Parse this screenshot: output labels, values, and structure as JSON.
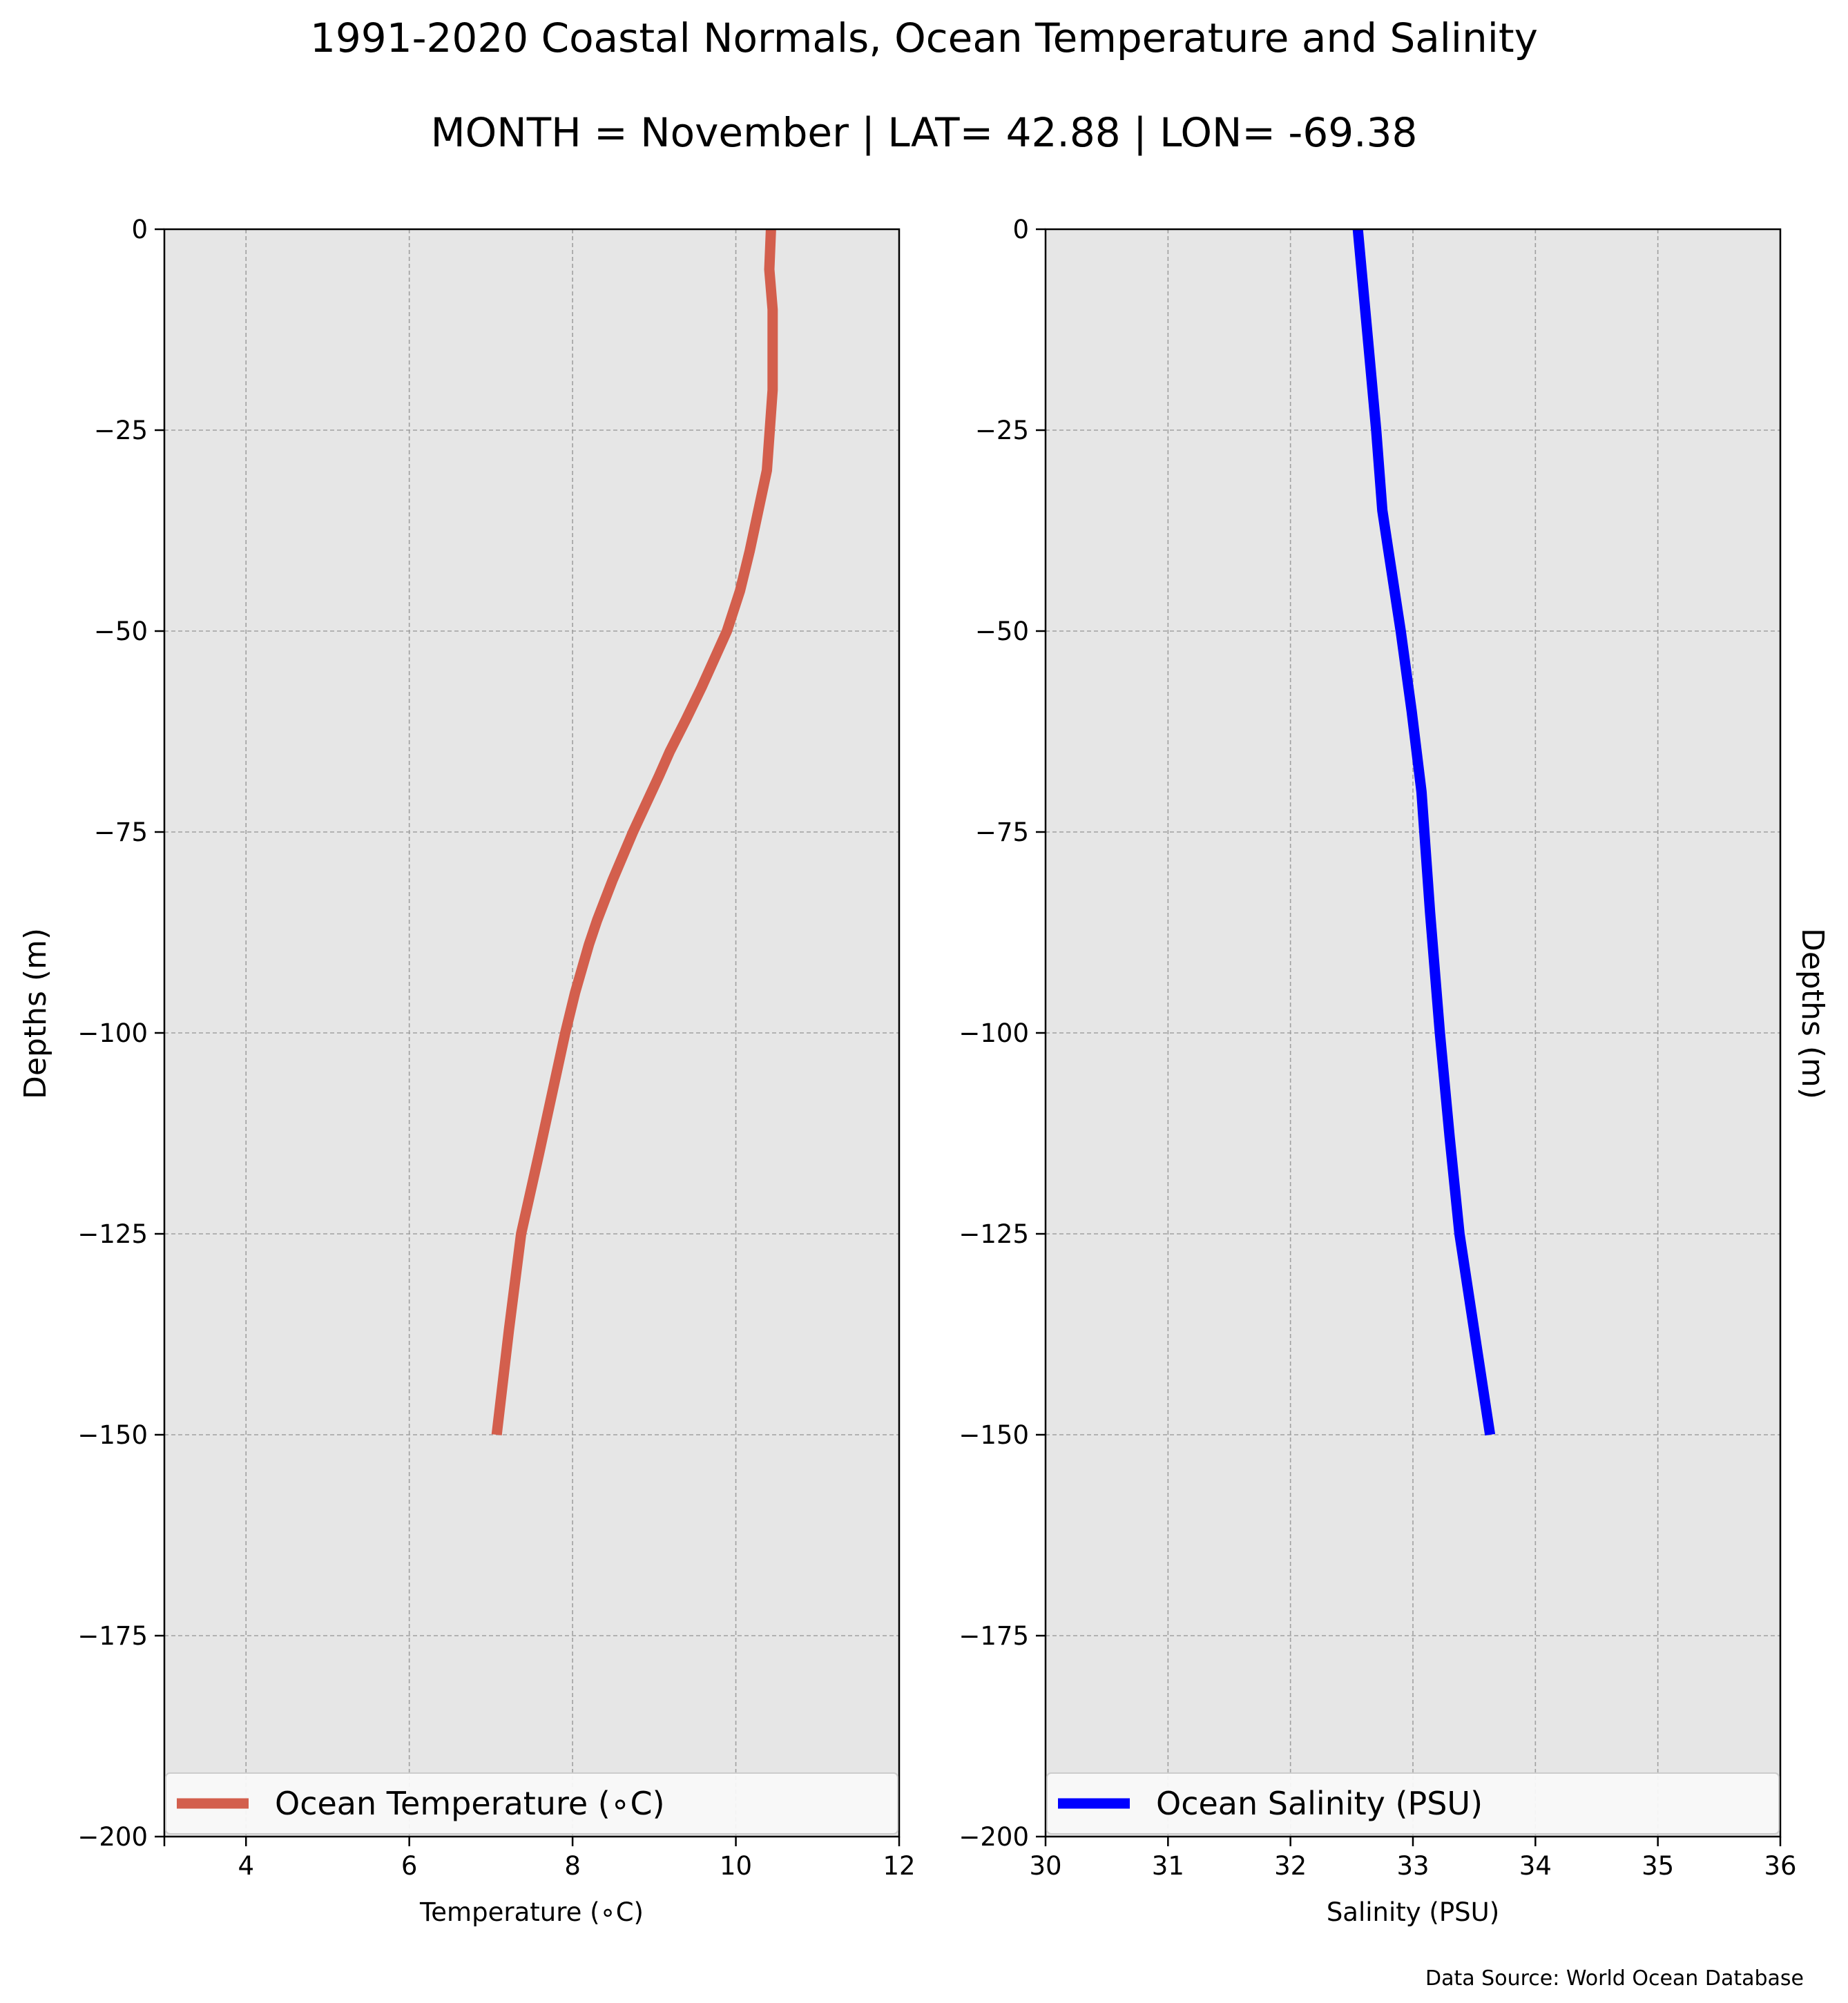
{
  "figure": {
    "title": "1991-2020 Coastal Normals, Ocean Temperature and Salinity",
    "subtitle": "MONTH = November | LAT= 42.88 | LON= -69.38",
    "source": "Data Source: World Ocean Database",
    "background": "#ffffff",
    "plot_background": "#e6e6e6"
  },
  "chart_data": [
    {
      "type": "line",
      "xlabel": "Temperature ($^\\circ$C)",
      "xlabel_display": "Temperature (∘C)",
      "ylabel": "Depths (m)",
      "xlim": [
        3,
        12
      ],
      "ylim": [
        -200,
        0
      ],
      "xticks": [
        4,
        6,
        8,
        10,
        12
      ],
      "xtick_labels": [
        "4",
        "6",
        "8",
        "10",
        "12"
      ],
      "yticks": [
        0,
        -25,
        -50,
        -75,
        -100,
        -125,
        -150,
        -175,
        -200
      ],
      "ytick_labels": [
        "0",
        "−25",
        "−50",
        "−75",
        "−100",
        "−125",
        "−150",
        "−175",
        "−200"
      ],
      "grid": true,
      "legend_location": "bottom",
      "series": [
        {
          "name": "Ocean Temperature (∘C)",
          "color": "#d35f4d",
          "points": [
            {
              "x": 10.43,
              "y": 0
            },
            {
              "x": 10.41,
              "y": -5
            },
            {
              "x": 10.45,
              "y": -10
            },
            {
              "x": 10.45,
              "y": -20
            },
            {
              "x": 10.38,
              "y": -30
            },
            {
              "x": 10.17,
              "y": -40
            },
            {
              "x": 10.05,
              "y": -45
            },
            {
              "x": 9.89,
              "y": -50
            },
            {
              "x": 9.58,
              "y": -57
            },
            {
              "x": 9.39,
              "y": -61
            },
            {
              "x": 9.19,
              "y": -65
            },
            {
              "x": 9.06,
              "y": -68
            },
            {
              "x": 8.74,
              "y": -75
            },
            {
              "x": 8.49,
              "y": -81
            },
            {
              "x": 8.3,
              "y": -86
            },
            {
              "x": 8.2,
              "y": -89
            },
            {
              "x": 8.03,
              "y": -95
            },
            {
              "x": 7.91,
              "y": -100
            },
            {
              "x": 7.59,
              "y": -115
            },
            {
              "x": 7.37,
              "y": -125
            },
            {
              "x": 7.22,
              "y": -137
            },
            {
              "x": 7.07,
              "y": -150
            }
          ]
        }
      ]
    },
    {
      "type": "line",
      "xlabel": "Salinity (PSU)",
      "ylabel": "Depths (m)",
      "xlim": [
        30,
        36
      ],
      "ylim": [
        -200,
        0
      ],
      "xticks": [
        30,
        31,
        32,
        33,
        34,
        35,
        36
      ],
      "xtick_labels": [
        "30",
        "31",
        "32",
        "33",
        "34",
        "35",
        "36"
      ],
      "yticks": [
        0,
        -25,
        -50,
        -75,
        -100,
        -125,
        -150,
        -175,
        -200
      ],
      "ytick_labels": [
        "0",
        "−25",
        "−50",
        "−75",
        "−100",
        "−125",
        "−150",
        "−175",
        "−200"
      ],
      "grid": true,
      "legend_location": "bottom",
      "series": [
        {
          "name": "Ocean Salinity (PSU)",
          "color": "#0000ff",
          "points": [
            {
              "x": 32.55,
              "y": 0
            },
            {
              "x": 32.58,
              "y": -5
            },
            {
              "x": 32.64,
              "y": -15
            },
            {
              "x": 32.7,
              "y": -25
            },
            {
              "x": 32.75,
              "y": -35
            },
            {
              "x": 32.8,
              "y": -40
            },
            {
              "x": 32.9,
              "y": -50
            },
            {
              "x": 32.99,
              "y": -60
            },
            {
              "x": 33.07,
              "y": -70
            },
            {
              "x": 33.14,
              "y": -85
            },
            {
              "x": 33.22,
              "y": -100
            },
            {
              "x": 33.3,
              "y": -113
            },
            {
              "x": 33.38,
              "y": -125
            },
            {
              "x": 33.51,
              "y": -138
            },
            {
              "x": 33.63,
              "y": -150
            }
          ]
        }
      ]
    }
  ]
}
